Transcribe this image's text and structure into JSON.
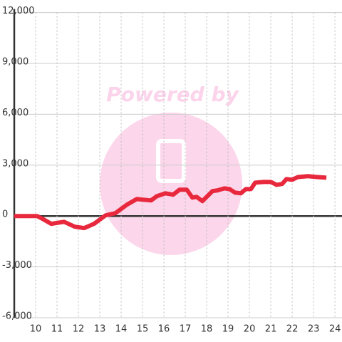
{
  "chart_data": {
    "type": "line",
    "watermark": "Powered by",
    "x": [
      9,
      10.07,
      10.33,
      10.73,
      11.33,
      11.83,
      12.27,
      12.73,
      13.27,
      13.73,
      14.27,
      14.73,
      15.4,
      15.67,
      16.07,
      16.43,
      16.73,
      17.07,
      17.33,
      17.53,
      17.8,
      18.27,
      18.5,
      18.83,
      19.07,
      19.33,
      19.6,
      19.83,
      20.07,
      20.27,
      20.67,
      21,
      21.27,
      21.53,
      21.73,
      22,
      22.27,
      22.73,
      23.17,
      23.6
    ],
    "series": [
      {
        "color": "#e8283c",
        "values": [
          0,
          0,
          -170,
          -460,
          -340,
          -630,
          -710,
          -460,
          40,
          170,
          670,
          1000,
          920,
          1170,
          1340,
          1260,
          1550,
          1550,
          1090,
          1130,
          880,
          1470,
          1510,
          1630,
          1590,
          1380,
          1340,
          1590,
          1590,
          1970,
          2010,
          2010,
          1840,
          1890,
          2180,
          2140,
          2300,
          2350,
          2300,
          2260
        ]
      }
    ],
    "xlim": [
      9,
      24.33
    ],
    "xticks": [
      10,
      11,
      12,
      13,
      14,
      15,
      16,
      17,
      18,
      19,
      20,
      21,
      22,
      23,
      24
    ],
    "ylim": [
      -6000,
      12000
    ],
    "yticks": [
      {
        "value": -6000,
        "label": "-6,000"
      },
      {
        "value": -3000,
        "label": "-3,000"
      },
      0,
      {
        "value": 3000,
        "label": "3,000"
      },
      {
        "value": 6000,
        "label": "6,000"
      },
      {
        "value": 9000,
        "label": "9,000"
      },
      {
        "value": 12000,
        "label": "12,000"
      }
    ],
    "grid": true
  }
}
